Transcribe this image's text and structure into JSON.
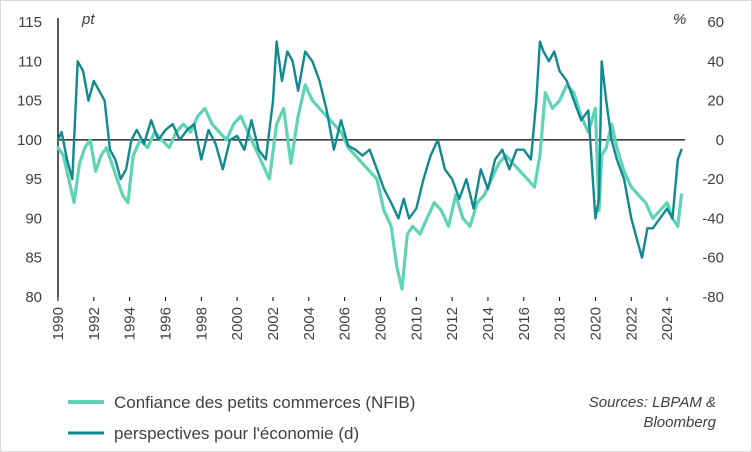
{
  "chart_data": {
    "type": "line",
    "left_axis": {
      "unit": "pt",
      "ticks": [
        115,
        110,
        105,
        100,
        95,
        90,
        85,
        80
      ],
      "range": [
        80,
        115
      ]
    },
    "right_axis": {
      "unit": "%",
      "ticks": [
        60,
        40,
        20,
        0,
        -20,
        -40,
        -60,
        -80
      ],
      "range": [
        -80,
        60
      ]
    },
    "x_ticks": [
      "1990",
      "1992",
      "1994",
      "1996",
      "1998",
      "2000",
      "2002",
      "2004",
      "2006",
      "2008",
      "2010",
      "2012",
      "2014",
      "2016",
      "2018",
      "2020",
      "2022",
      "2024"
    ],
    "x_range": [
      1990,
      2025
    ],
    "series": [
      {
        "name": "Confiance des petits commerces (NFIB)",
        "axis": "left",
        "color": "#5fd3b6",
        "x": [
          1990,
          1990.3,
          1990.6,
          1990.9,
          1991.2,
          1991.5,
          1991.8,
          1992.1,
          1992.4,
          1992.7,
          1993.0,
          1993.3,
          1993.6,
          1993.9,
          1994.2,
          1994.6,
          1995.0,
          1995.4,
          1995.8,
          1996.2,
          1996.6,
          1997.0,
          1997.4,
          1997.8,
          1998.2,
          1998.6,
          1999.0,
          1999.4,
          1999.8,
          2000.2,
          2000.6,
          2001.0,
          2001.4,
          2001.8,
          2002.2,
          2002.6,
          2003.0,
          2003.4,
          2003.8,
          2004.2,
          2004.6,
          2005.0,
          2005.4,
          2005.8,
          2006.2,
          2006.6,
          2007.0,
          2007.4,
          2007.8,
          2008.2,
          2008.6,
          2008.9,
          2009.2,
          2009.5,
          2009.8,
          2010.2,
          2010.6,
          2011.0,
          2011.4,
          2011.8,
          2012.2,
          2012.6,
          2013.0,
          2013.4,
          2013.8,
          2014.2,
          2014.6,
          2015.0,
          2015.4,
          2015.8,
          2016.2,
          2016.6,
          2016.9,
          2017.2,
          2017.6,
          2018.0,
          2018.4,
          2018.8,
          2019.2,
          2019.6,
          2020.0,
          2020.2,
          2020.35,
          2020.6,
          2020.9,
          2021.2,
          2021.6,
          2022.0,
          2022.4,
          2022.8,
          2023.2,
          2023.6,
          2024.0,
          2024.3,
          2024.6,
          2024.8
        ],
        "y": [
          99,
          98,
          95,
          92,
          97,
          99,
          100,
          96,
          98,
          99,
          97,
          95,
          93,
          92,
          98,
          100,
          99,
          101,
          100,
          99,
          101,
          102,
          101,
          103,
          104,
          102,
          101,
          100,
          102,
          103,
          101,
          99,
          97,
          95,
          102,
          104,
          97,
          103,
          107,
          105,
          104,
          103,
          102,
          101,
          99,
          98,
          97,
          96,
          95,
          91,
          89,
          84,
          81,
          88,
          89,
          88,
          90,
          92,
          91,
          89,
          93,
          90,
          89,
          92,
          93,
          95,
          97,
          98,
          97,
          96,
          95,
          94,
          98,
          106,
          104,
          105,
          107,
          106,
          103,
          101,
          104,
          91,
          98,
          99,
          102,
          99,
          96,
          94,
          93,
          92,
          90,
          91,
          92,
          90,
          89,
          93
        ]
      },
      {
        "name": "perspectives pour l'économie (d)",
        "axis": "right",
        "color": "#12898f",
        "x": [
          1990,
          1990.2,
          1990.5,
          1990.8,
          1991.1,
          1991.4,
          1991.7,
          1992.0,
          1992.3,
          1992.6,
          1992.9,
          1993.2,
          1993.5,
          1993.8,
          1994.1,
          1994.4,
          1994.8,
          1995.2,
          1995.6,
          1996.0,
          1996.4,
          1996.8,
          1997.2,
          1997.6,
          1998.0,
          1998.4,
          1998.8,
          1999.2,
          1999.6,
          2000.0,
          2000.4,
          2000.8,
          2001.2,
          2001.6,
          2002.0,
          2002.2,
          2002.5,
          2002.8,
          2003.1,
          2003.4,
          2003.8,
          2004.2,
          2004.6,
          2005.0,
          2005.4,
          2005.8,
          2006.2,
          2006.6,
          2007.0,
          2007.4,
          2007.8,
          2008.2,
          2008.6,
          2009.0,
          2009.3,
          2009.6,
          2010.0,
          2010.4,
          2010.8,
          2011.2,
          2011.6,
          2012.0,
          2012.4,
          2012.8,
          2013.2,
          2013.6,
          2014.0,
          2014.4,
          2014.8,
          2015.2,
          2015.6,
          2016.0,
          2016.4,
          2016.7,
          2016.9,
          2017.1,
          2017.4,
          2017.7,
          2018.0,
          2018.4,
          2018.8,
          2019.2,
          2019.6,
          2020.0,
          2020.2,
          2020.35,
          2020.6,
          2020.9,
          2021.2,
          2021.6,
          2022.0,
          2022.3,
          2022.6,
          2022.9,
          2023.2,
          2023.6,
          2024.0,
          2024.3,
          2024.6,
          2024.8
        ],
        "y": [
          0,
          4,
          -10,
          -20,
          40,
          35,
          20,
          30,
          25,
          20,
          -5,
          -10,
          -20,
          -15,
          0,
          5,
          -2,
          10,
          0,
          5,
          8,
          0,
          5,
          8,
          -10,
          5,
          -2,
          -15,
          0,
          2,
          -5,
          10,
          -5,
          -10,
          20,
          50,
          30,
          45,
          40,
          25,
          45,
          40,
          30,
          15,
          -5,
          10,
          -3,
          -5,
          -8,
          -5,
          -15,
          -25,
          -32,
          -40,
          -30,
          -40,
          -35,
          -20,
          -8,
          0,
          -15,
          -20,
          -30,
          -20,
          -35,
          -15,
          -25,
          -10,
          -5,
          -15,
          -5,
          -5,
          -10,
          20,
          50,
          45,
          40,
          45,
          35,
          30,
          20,
          10,
          15,
          -40,
          -30,
          40,
          20,
          0,
          -10,
          -20,
          -40,
          -50,
          -60,
          -45,
          -45,
          -40,
          -35,
          -40,
          -10,
          -5
        ]
      }
    ],
    "legend": [
      {
        "label": "Confiance des petits commerces (NFIB)",
        "color": "#5fd3b6"
      },
      {
        "label": "perspectives pour l'économie (d)",
        "color": "#12898f"
      }
    ],
    "source": [
      "Sources: LBPAM &",
      "Bloomberg"
    ]
  }
}
